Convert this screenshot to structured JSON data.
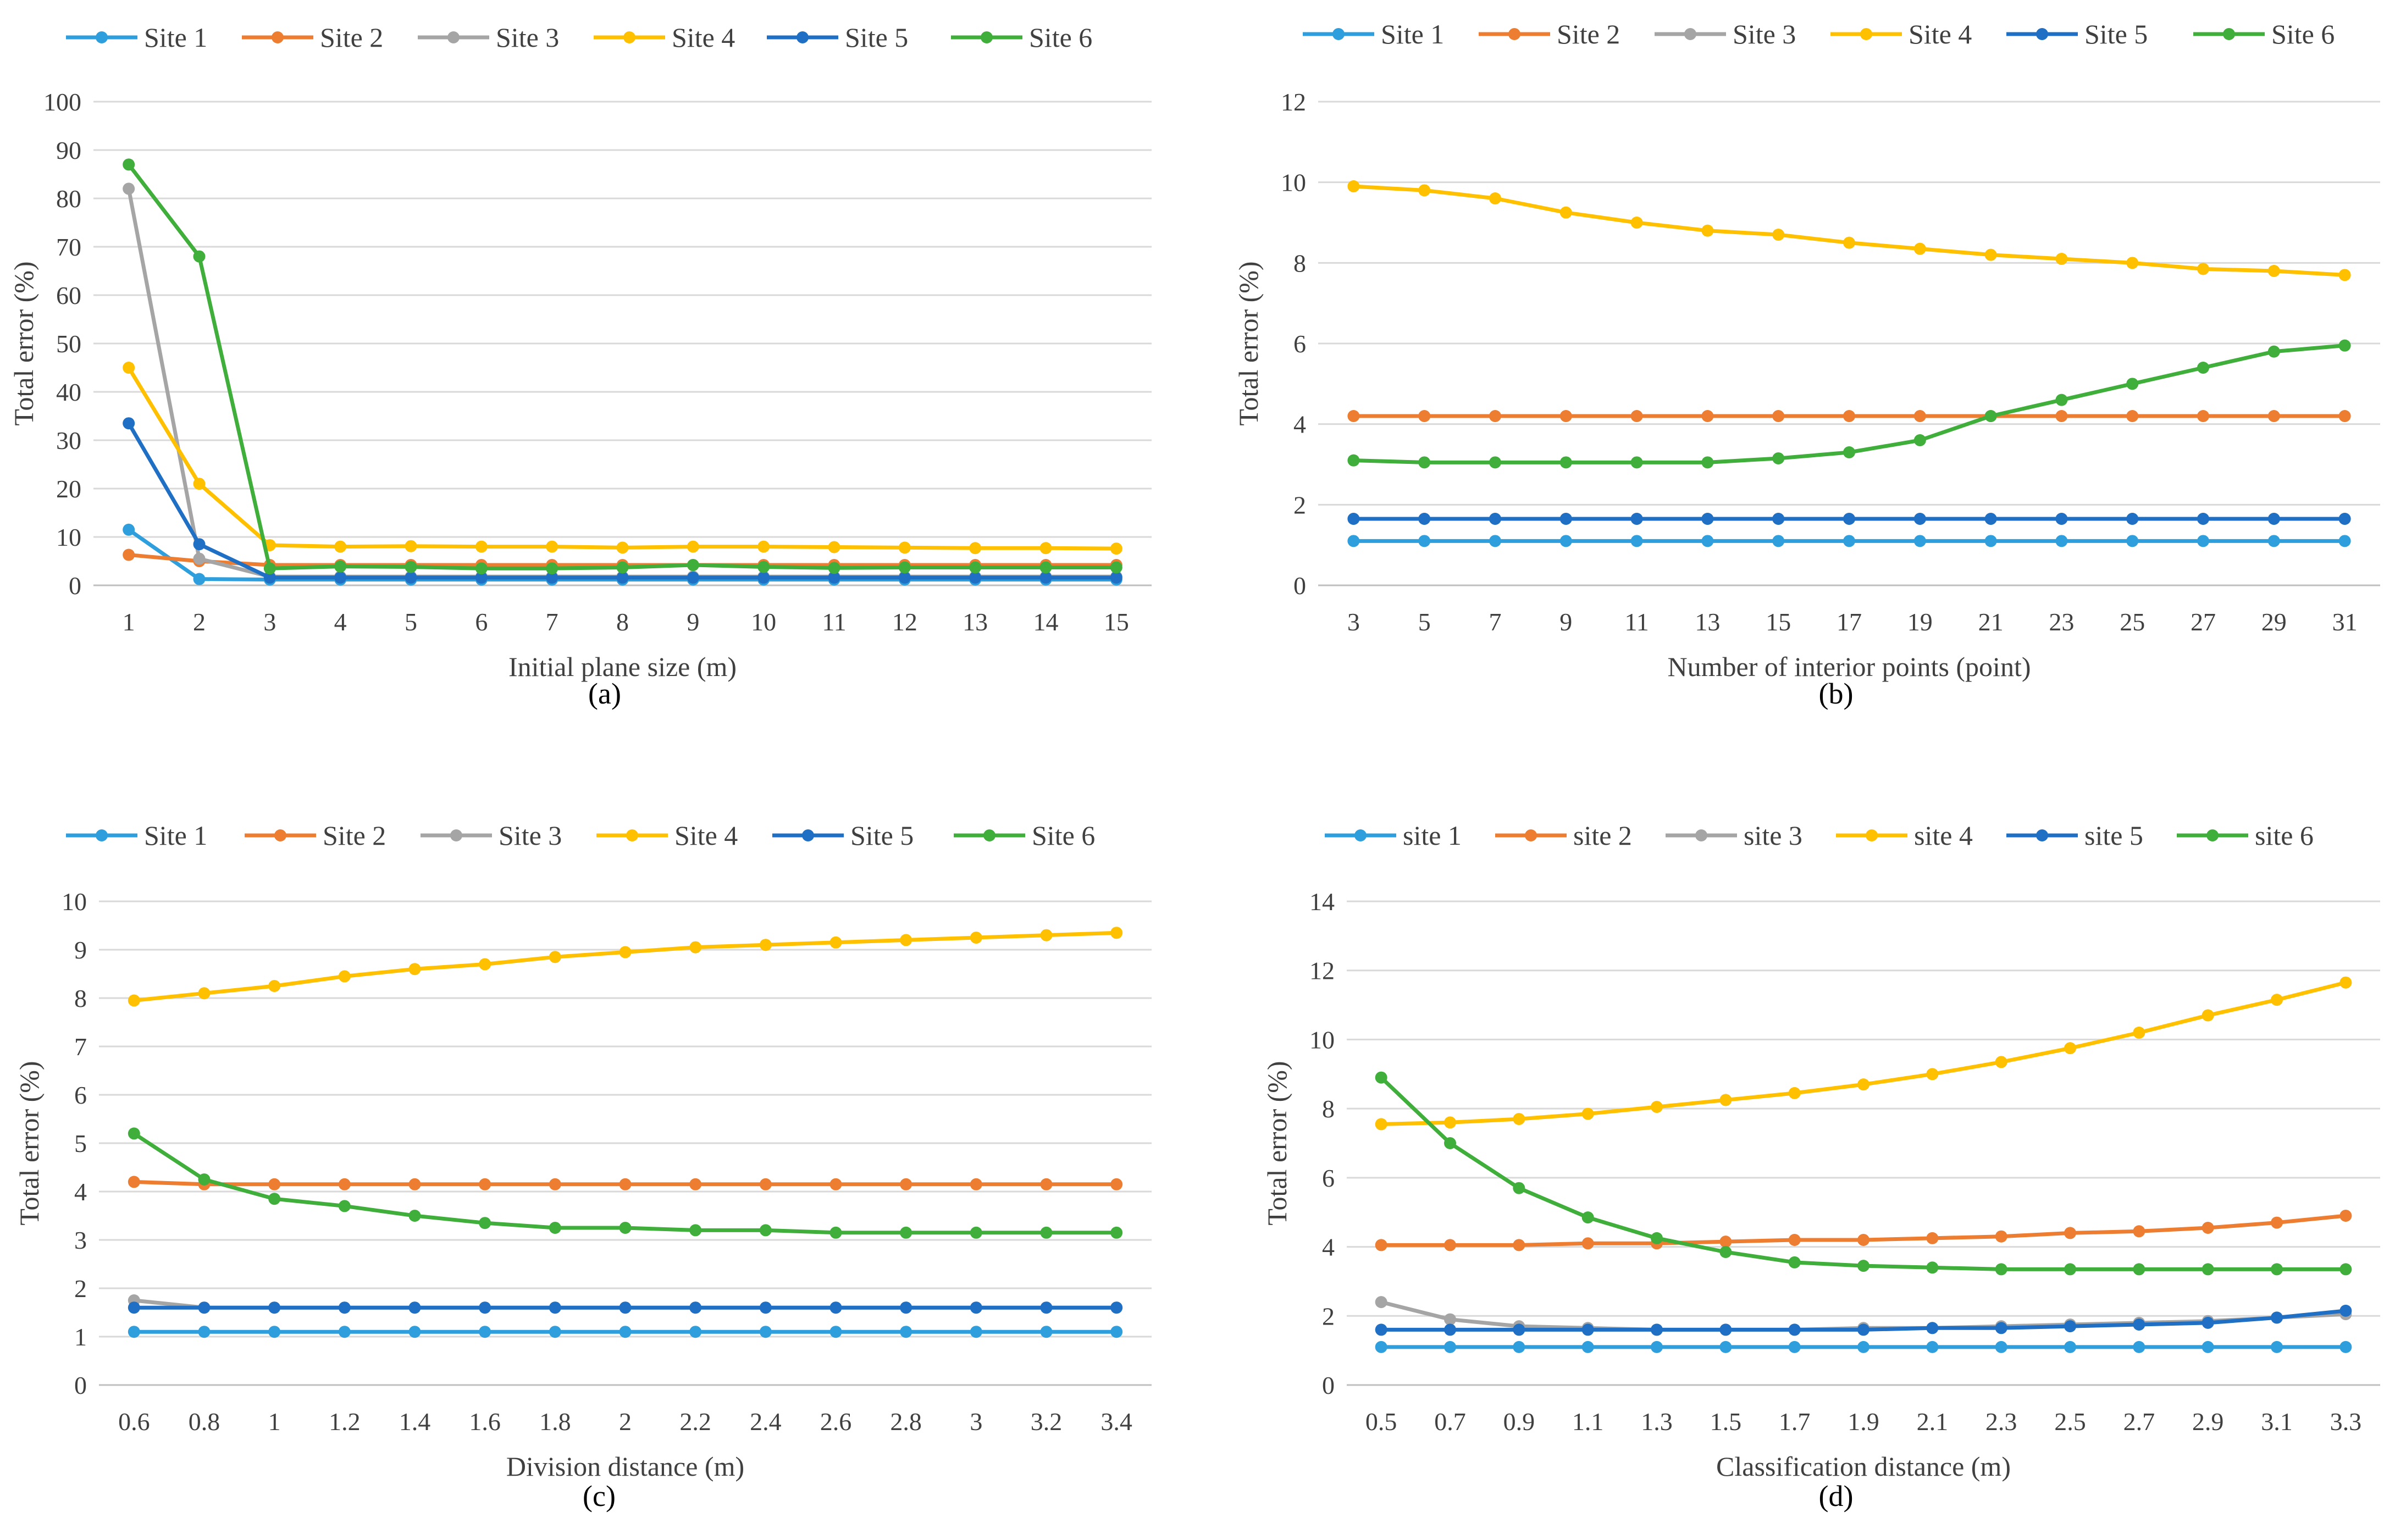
{
  "colors": {
    "s1": "#2e9fdc",
    "s2": "#ed7d31",
    "s3": "#a5a5a5",
    "s4": "#ffc000",
    "s5": "#1f6fc4",
    "s6": "#3fae3a"
  },
  "chart_data": [
    {
      "type": "line",
      "panel_label": "(a)",
      "xlabel": "Initial plane size (m)",
      "ylabel": "Total error (%)",
      "categories": [
        "1",
        "2",
        "3",
        "4",
        "5",
        "6",
        "7",
        "8",
        "9",
        "10",
        "11",
        "12",
        "13",
        "14",
        "15"
      ],
      "ylim": [
        0,
        100
      ],
      "yticks": [
        "0",
        "10",
        "20",
        "30",
        "40",
        "50",
        "60",
        "70",
        "80",
        "90",
        "100"
      ],
      "series": [
        {
          "name": "Site 1",
          "color_key": "s1",
          "values": [
            11.5,
            1.3,
            1.2,
            1.2,
            1.2,
            1.2,
            1.2,
            1.2,
            1.2,
            1.2,
            1.2,
            1.2,
            1.2,
            1.2,
            1.2
          ]
        },
        {
          "name": "Site 2",
          "color_key": "s2",
          "values": [
            6.3,
            5.0,
            4.2,
            4.2,
            4.2,
            4.2,
            4.2,
            4.2,
            4.2,
            4.2,
            4.2,
            4.2,
            4.2,
            4.2,
            4.2
          ]
        },
        {
          "name": "Site 3",
          "color_key": "s3",
          "values": [
            82,
            5.5,
            1.8,
            1.8,
            1.8,
            1.8,
            1.8,
            1.8,
            1.8,
            1.8,
            1.8,
            1.8,
            1.8,
            1.8,
            1.8
          ]
        },
        {
          "name": "Site 4",
          "color_key": "s4",
          "values": [
            45,
            21,
            8.3,
            8.0,
            8.1,
            8.0,
            8.0,
            7.8,
            8.0,
            8.0,
            7.9,
            7.8,
            7.7,
            7.7,
            7.6
          ]
        },
        {
          "name": "Site 5",
          "color_key": "s5",
          "values": [
            33.5,
            8.5,
            1.6,
            1.6,
            1.6,
            1.6,
            1.6,
            1.6,
            1.6,
            1.6,
            1.6,
            1.6,
            1.6,
            1.6,
            1.6
          ]
        },
        {
          "name": "Site 6",
          "color_key": "s6",
          "values": [
            87,
            68,
            3.5,
            3.9,
            3.8,
            3.5,
            3.5,
            3.7,
            4.2,
            3.8,
            3.6,
            3.7,
            3.7,
            3.7,
            3.7
          ]
        }
      ]
    },
    {
      "type": "line",
      "panel_label": "(b)",
      "xlabel": "Number of interior points (point)",
      "ylabel": "Total error (%)",
      "categories": [
        "3",
        "5",
        "7",
        "9",
        "11",
        "13",
        "15",
        "17",
        "19",
        "21",
        "23",
        "25",
        "27",
        "29",
        "31"
      ],
      "ylim": [
        0,
        12
      ],
      "yticks": [
        "0",
        "2",
        "4",
        "6",
        "8",
        "10",
        "12"
      ],
      "series": [
        {
          "name": "Site 1",
          "color_key": "s1",
          "values": [
            1.1,
            1.1,
            1.1,
            1.1,
            1.1,
            1.1,
            1.1,
            1.1,
            1.1,
            1.1,
            1.1,
            1.1,
            1.1,
            1.1,
            1.1
          ]
        },
        {
          "name": "Site 2",
          "color_key": "s2",
          "values": [
            4.2,
            4.2,
            4.2,
            4.2,
            4.2,
            4.2,
            4.2,
            4.2,
            4.2,
            4.2,
            4.2,
            4.2,
            4.2,
            4.2,
            4.2
          ]
        },
        {
          "name": "Site 3",
          "color_key": "s3",
          "values": [
            1.65,
            1.65,
            1.65,
            1.65,
            1.65,
            1.65,
            1.65,
            1.65,
            1.65,
            1.65,
            1.65,
            1.65,
            1.65,
            1.65,
            1.65
          ]
        },
        {
          "name": "Site 4",
          "color_key": "s4",
          "values": [
            9.9,
            9.8,
            9.6,
            9.25,
            9.0,
            8.8,
            8.7,
            8.5,
            8.35,
            8.2,
            8.1,
            8.0,
            7.85,
            7.8,
            7.7
          ]
        },
        {
          "name": "Site 5",
          "color_key": "s5",
          "values": [
            1.65,
            1.65,
            1.65,
            1.65,
            1.65,
            1.65,
            1.65,
            1.65,
            1.65,
            1.65,
            1.65,
            1.65,
            1.65,
            1.65,
            1.65
          ]
        },
        {
          "name": "Site 6",
          "color_key": "s6",
          "values": [
            3.1,
            3.05,
            3.05,
            3.05,
            3.05,
            3.05,
            3.15,
            3.3,
            3.6,
            4.2,
            4.6,
            5.0,
            5.4,
            5.8,
            5.95
          ]
        }
      ]
    },
    {
      "type": "line",
      "panel_label": "(c)",
      "xlabel": "Division distance (m)",
      "ylabel": "Total error (%)",
      "categories": [
        "0.6",
        "0.8",
        "1",
        "1.2",
        "1.4",
        "1.6",
        "1.8",
        "2",
        "2.2",
        "2.4",
        "2.6",
        "2.8",
        "3",
        "3.2",
        "3.4"
      ],
      "ylim": [
        0,
        10
      ],
      "yticks": [
        "0",
        "1",
        "2",
        "3",
        "4",
        "5",
        "6",
        "7",
        "8",
        "9",
        "10"
      ],
      "series": [
        {
          "name": "Site 1",
          "color_key": "s1",
          "values": [
            1.1,
            1.1,
            1.1,
            1.1,
            1.1,
            1.1,
            1.1,
            1.1,
            1.1,
            1.1,
            1.1,
            1.1,
            1.1,
            1.1,
            1.1
          ]
        },
        {
          "name": "Site 2",
          "color_key": "s2",
          "values": [
            4.2,
            4.15,
            4.15,
            4.15,
            4.15,
            4.15,
            4.15,
            4.15,
            4.15,
            4.15,
            4.15,
            4.15,
            4.15,
            4.15,
            4.15
          ]
        },
        {
          "name": "Site 3",
          "color_key": "s3",
          "values": [
            1.75,
            1.6,
            1.6,
            1.6,
            1.6,
            1.6,
            1.6,
            1.6,
            1.6,
            1.6,
            1.6,
            1.6,
            1.6,
            1.6,
            1.6
          ]
        },
        {
          "name": "Site 4",
          "color_key": "s4",
          "values": [
            7.95,
            8.1,
            8.25,
            8.45,
            8.6,
            8.7,
            8.85,
            8.95,
            9.05,
            9.1,
            9.15,
            9.2,
            9.25,
            9.3,
            9.35
          ]
        },
        {
          "name": "Site 5",
          "color_key": "s5",
          "values": [
            1.6,
            1.6,
            1.6,
            1.6,
            1.6,
            1.6,
            1.6,
            1.6,
            1.6,
            1.6,
            1.6,
            1.6,
            1.6,
            1.6,
            1.6
          ]
        },
        {
          "name": "Site 6",
          "color_key": "s6",
          "values": [
            5.2,
            4.25,
            3.85,
            3.7,
            3.5,
            3.35,
            3.25,
            3.25,
            3.2,
            3.2,
            3.15,
            3.15,
            3.15,
            3.15,
            3.15
          ]
        }
      ]
    },
    {
      "type": "line",
      "panel_label": "(d)",
      "xlabel": "Classification distance (m)",
      "ylabel": "Total error (%)",
      "categories": [
        "0.5",
        "0.7",
        "0.9",
        "1.1",
        "1.3",
        "1.5",
        "1.7",
        "1.9",
        "2.1",
        "2.3",
        "2.5",
        "2.7",
        "2.9",
        "3.1",
        "3.3"
      ],
      "ylim": [
        0,
        14
      ],
      "yticks": [
        "0",
        "2",
        "4",
        "6",
        "8",
        "10",
        "12",
        "14"
      ],
      "series": [
        {
          "name": "site 1",
          "color_key": "s1",
          "values": [
            1.1,
            1.1,
            1.1,
            1.1,
            1.1,
            1.1,
            1.1,
            1.1,
            1.1,
            1.1,
            1.1,
            1.1,
            1.1,
            1.1,
            1.1
          ]
        },
        {
          "name": "site 2",
          "color_key": "s2",
          "values": [
            4.05,
            4.05,
            4.05,
            4.1,
            4.1,
            4.15,
            4.2,
            4.2,
            4.25,
            4.3,
            4.4,
            4.45,
            4.55,
            4.7,
            4.9
          ]
        },
        {
          "name": "site 3",
          "color_key": "s3",
          "values": [
            2.4,
            1.9,
            1.7,
            1.65,
            1.6,
            1.6,
            1.6,
            1.65,
            1.65,
            1.7,
            1.75,
            1.8,
            1.85,
            1.95,
            2.05
          ]
        },
        {
          "name": "site 4",
          "color_key": "s4",
          "values": [
            7.55,
            7.6,
            7.7,
            7.85,
            8.05,
            8.25,
            8.45,
            8.7,
            9.0,
            9.35,
            9.75,
            10.2,
            10.7,
            11.15,
            11.65
          ]
        },
        {
          "name": "site 5",
          "color_key": "s5",
          "values": [
            1.6,
            1.6,
            1.6,
            1.6,
            1.6,
            1.6,
            1.6,
            1.6,
            1.65,
            1.65,
            1.7,
            1.75,
            1.8,
            1.95,
            2.15
          ]
        },
        {
          "name": "site 6",
          "color_key": "s6",
          "values": [
            8.9,
            7.0,
            5.7,
            4.85,
            4.25,
            3.85,
            3.55,
            3.45,
            3.4,
            3.35,
            3.35,
            3.35,
            3.35,
            3.35,
            3.35
          ]
        }
      ]
    }
  ]
}
